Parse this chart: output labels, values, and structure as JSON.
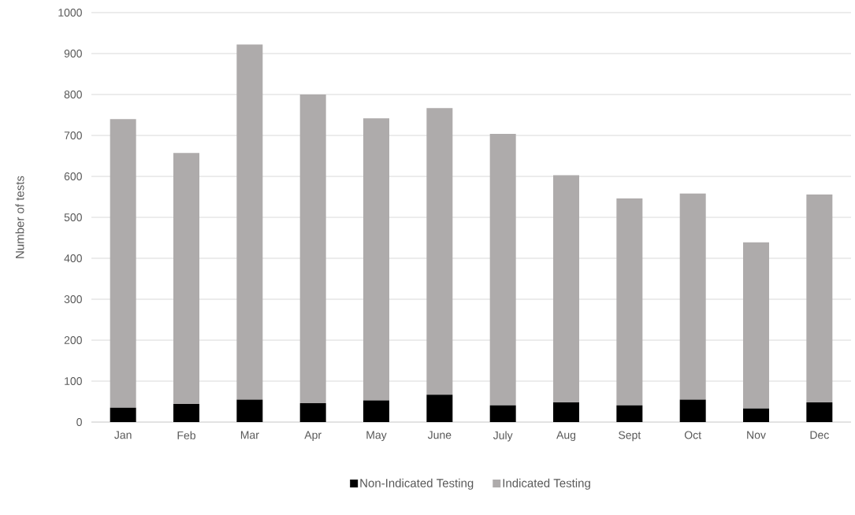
{
  "chart_data": {
    "type": "bar",
    "stacked": true,
    "ylabel": "Number of tests",
    "categories": [
      "Jan",
      "Feb",
      "Mar",
      "Apr",
      "May",
      "June",
      "July",
      "Aug",
      "Sept",
      "Oct",
      "Nov",
      "Dec"
    ],
    "series": [
      {
        "name": "Non-Indicated Testing",
        "color": "#000000",
        "values": [
          35,
          44,
          55,
          46,
          53,
          67,
          41,
          48,
          41,
          55,
          33,
          48
        ]
      },
      {
        "name": "Indicated Testing",
        "color": "#aeabab",
        "values": [
          705,
          613,
          867,
          754,
          689,
          700,
          663,
          555,
          505,
          503,
          406,
          508
        ]
      }
    ],
    "ylim": [
      0,
      1000
    ],
    "yticks": [
      0,
      100,
      200,
      300,
      400,
      500,
      600,
      700,
      800,
      900,
      1000
    ],
    "grid": "y",
    "legend": "bottom"
  }
}
